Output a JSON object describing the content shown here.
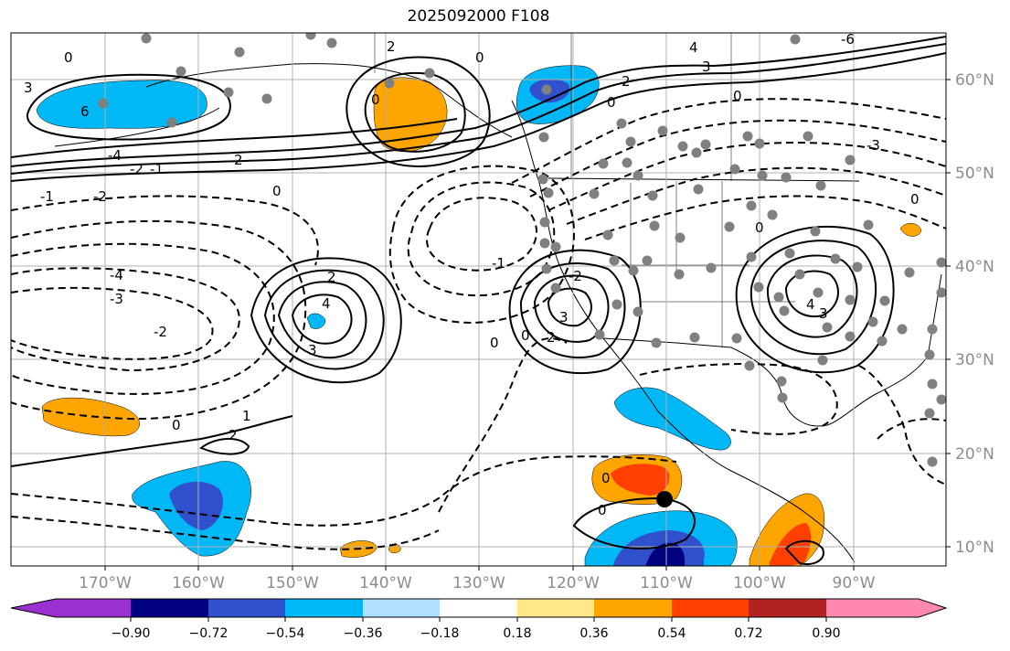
{
  "title": "2025092000 F108",
  "longitude_labels": [
    "170°W",
    "160°W",
    "150°W",
    "140°W",
    "130°W",
    "120°W",
    "110°W",
    "100°W",
    "90°W"
  ],
  "latitude_labels": [
    "60°N",
    "50°N",
    "40°N",
    "30°N",
    "20°N",
    "10°N"
  ],
  "colorbar": {
    "tick_labels": [
      "−0.90",
      "−0.72",
      "−0.54",
      "−0.36",
      "−0.18",
      "0.18",
      "0.36",
      "0.54",
      "0.72",
      "0.90"
    ],
    "colors": [
      "#9b30d0",
      "#000080",
      "#3050cc",
      "#00b8f5",
      "#b0e0ff",
      "#ffffff",
      "#ffe88a",
      "#ffa500",
      "#ff4000",
      "#b22222",
      "#ff88b0"
    ]
  },
  "contour_labels": [
    {
      "id": "c1",
      "text": "6"
    },
    {
      "id": "c2",
      "text": "-4"
    },
    {
      "id": "c3",
      "text": "-2"
    },
    {
      "id": "c4",
      "text": "-1"
    },
    {
      "id": "c5",
      "text": "-2"
    },
    {
      "id": "c6",
      "text": "-1"
    },
    {
      "id": "c7",
      "text": "0"
    },
    {
      "id": "c8",
      "text": "-4"
    },
    {
      "id": "c9",
      "text": "-3"
    },
    {
      "id": "c10",
      "text": "-2"
    },
    {
      "id": "c11",
      "text": "0"
    },
    {
      "id": "c12",
      "text": "1"
    },
    {
      "id": "c13",
      "text": "2"
    },
    {
      "id": "c14",
      "text": "2"
    },
    {
      "id": "c15",
      "text": "4"
    },
    {
      "id": "c16",
      "text": "3"
    },
    {
      "id": "c17",
      "text": "0"
    },
    {
      "id": "c18",
      "text": "0"
    },
    {
      "id": "c19",
      "text": "2"
    },
    {
      "id": "c20",
      "text": "3"
    },
    {
      "id": "c21",
      "text": "0"
    },
    {
      "id": "c22",
      "text": "0"
    },
    {
      "id": "c23",
      "text": "4"
    },
    {
      "id": "c24",
      "text": "3"
    },
    {
      "id": "c25",
      "text": "0"
    },
    {
      "id": "c26",
      "text": "2"
    },
    {
      "id": "c27",
      "text": "4"
    },
    {
      "id": "c28",
      "text": "3"
    },
    {
      "id": "c29",
      "text": "0"
    },
    {
      "id": "c30",
      "text": "0"
    },
    {
      "id": "c31",
      "text": "-3"
    },
    {
      "id": "c32",
      "text": "0"
    },
    {
      "id": "c33",
      "text": "0"
    },
    {
      "id": "c34",
      "text": "-1"
    },
    {
      "id": "c35",
      "text": "-2"
    },
    {
      "id": "c36",
      "text": "0"
    },
    {
      "id": "c37",
      "text": "2"
    },
    {
      "id": "c38",
      "text": "0"
    },
    {
      "id": "c39",
      "text": "3"
    },
    {
      "id": "c40",
      "text": "-6"
    },
    {
      "id": "c41",
      "text": "2"
    }
  ],
  "colors": {
    "grid": "#b0b0b0",
    "contour": "#000000",
    "station": "#808080",
    "marker": "#000000"
  }
}
